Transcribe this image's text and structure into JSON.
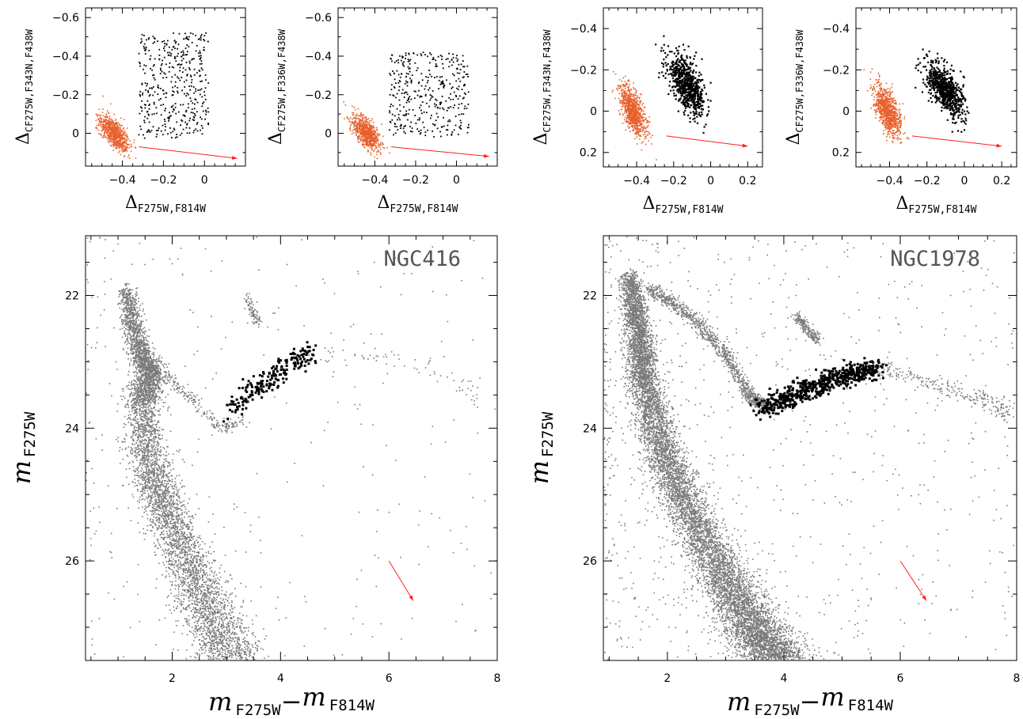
{
  "figure": {
    "colors": {
      "gray_points": "#7a7a7a",
      "black_points": "#000000",
      "orange_points": "#e8602c",
      "arrow": "#ff2020"
    }
  },
  "chart_data": [
    {
      "id": "small-1",
      "type": "scatter",
      "xlabel_main": "Δ",
      "xlabel_sub": "F275W,F814W",
      "ylabel_main": "Δ",
      "ylabel_sub": "CF275W,F343N,F438W",
      "xlim": [
        -0.58,
        0.2
      ],
      "ylim": [
        0.17,
        -0.65
      ],
      "xticks": [
        -0.4,
        -0.2,
        0
      ],
      "xticklabels": [
        "−0.4",
        "−0.2",
        "0"
      ],
      "yticks": [
        -0.6,
        -0.4,
        -0.2,
        0
      ],
      "yticklabels": [
        "−0.6",
        "−0.4",
        "−0.2",
        "0"
      ],
      "series": [
        {
          "color": "orange",
          "center": [
            -0.44,
            0.0
          ],
          "spread": [
            0.035,
            0.045
          ],
          "count": 700
        },
        {
          "color": "black",
          "x_range": [
            -0.32,
            0.02
          ],
          "y_range": [
            -0.52,
            0.03
          ],
          "count": 420
        }
      ],
      "arrow": {
        "from": [
          -0.32,
          0.07
        ],
        "to": [
          0.16,
          0.13
        ]
      }
    },
    {
      "id": "small-2",
      "type": "scatter",
      "xlabel_main": "Δ",
      "xlabel_sub": "F275W,F814W",
      "ylabel_main": "Δ",
      "ylabel_sub": "CF275W,F336W,F438W",
      "xlim": [
        -0.58,
        0.2
      ],
      "ylim": [
        0.17,
        -0.65
      ],
      "xticks": [
        -0.4,
        -0.2,
        0
      ],
      "xticklabels": [
        "−0.4",
        "−0.2",
        "0"
      ],
      "yticks": [
        -0.6,
        -0.4,
        -0.2,
        0
      ],
      "yticklabels": [
        "−0.6",
        "−0.4",
        "−0.2",
        "0"
      ],
      "series": [
        {
          "color": "orange",
          "center": [
            -0.44,
            0.0
          ],
          "spread": [
            0.035,
            0.045
          ],
          "count": 700
        },
        {
          "color": "black",
          "x_range": [
            -0.33,
            0.06
          ],
          "y_range": [
            -0.42,
            0.02
          ],
          "count": 380
        }
      ],
      "arrow": {
        "from": [
          -0.32,
          0.07
        ],
        "to": [
          0.16,
          0.12
        ]
      }
    },
    {
      "id": "small-3",
      "type": "scatter",
      "xlabel_main": "Δ",
      "xlabel_sub": "F275W,F814W",
      "ylabel_main": "Δ",
      "ylabel_sub": "CF275W,F343N,F438W",
      "xlim": [
        -0.58,
        0.28
      ],
      "ylim": [
        0.27,
        -0.5
      ],
      "xticks": [
        -0.4,
        -0.2,
        0,
        0.2
      ],
      "xticklabels": [
        "−0.4",
        "−0.2",
        "0",
        "0.2"
      ],
      "yticks": [
        -0.4,
        -0.2,
        0,
        0.2
      ],
      "yticklabels": [
        "−0.4",
        "−0.2",
        "0",
        "0.2"
      ],
      "series": [
        {
          "color": "orange",
          "center": [
            -0.42,
            0.0
          ],
          "spread": [
            0.035,
            0.06
          ],
          "count": 900
        },
        {
          "color": "black",
          "center": [
            -0.13,
            -0.13
          ],
          "spread": [
            0.05,
            0.07
          ],
          "count": 700
        }
      ],
      "arrow": {
        "from": [
          -0.24,
          0.12
        ],
        "to": [
          0.2,
          0.17
        ]
      }
    },
    {
      "id": "small-4",
      "type": "scatter",
      "xlabel_main": "Δ",
      "xlabel_sub": "F275W,F814W",
      "ylabel_main": "Δ",
      "ylabel_sub": "CF275W,F336W,F438W",
      "xlim": [
        -0.58,
        0.28
      ],
      "ylim": [
        0.27,
        -0.5
      ],
      "xticks": [
        -0.4,
        -0.2,
        0,
        0.2
      ],
      "xticklabels": [
        "−0.4",
        "−0.2",
        "0",
        "0.2"
      ],
      "yticks": [
        -0.4,
        -0.2,
        0,
        0.2
      ],
      "yticklabels": [
        "−0.4",
        "−0.2",
        "0",
        "0.2"
      ],
      "series": [
        {
          "color": "orange",
          "center": [
            -0.41,
            0.0
          ],
          "spread": [
            0.035,
            0.06
          ],
          "count": 900
        },
        {
          "color": "black",
          "center": [
            -0.1,
            -0.1
          ],
          "spread": [
            0.05,
            0.065
          ],
          "count": 700
        }
      ],
      "arrow": {
        "from": [
          -0.28,
          0.12
        ],
        "to": [
          0.2,
          0.17
        ]
      }
    },
    {
      "id": "cmd-ngc416",
      "type": "scatter",
      "label": "NGC416",
      "xlabel": "m F275W−m F814W",
      "ylabel": "m F275W",
      "xlim": [
        0.4,
        8.0
      ],
      "ylim": [
        27.5,
        21.1
      ],
      "xticks": [
        2,
        4,
        6,
        8
      ],
      "xticklabels": [
        "2",
        "4",
        "6",
        "8"
      ],
      "yticks": [
        22,
        24,
        26
      ],
      "yticklabels": [
        "22",
        "24",
        "26"
      ],
      "main_sequence": [
        [
          1.15,
          21.9
        ],
        [
          1.35,
          22.7
        ],
        [
          1.6,
          23.15
        ],
        [
          1.45,
          23.6
        ],
        [
          1.55,
          24.5
        ],
        [
          1.85,
          25.2
        ],
        [
          2.3,
          26.0
        ],
        [
          2.7,
          26.8
        ],
        [
          3.1,
          27.5
        ]
      ],
      "subgiant_branch": [
        [
          1.5,
          23.1
        ],
        [
          1.9,
          23.2
        ],
        [
          2.4,
          23.6
        ],
        [
          2.9,
          24.0
        ],
        [
          3.3,
          23.9
        ]
      ],
      "red_giant_branch_black": [
        [
          3.05,
          23.75
        ],
        [
          3.4,
          23.5
        ],
        [
          3.8,
          23.25
        ],
        [
          4.2,
          23.0
        ],
        [
          4.6,
          22.85
        ]
      ],
      "red_giant_extension": [
        [
          4.6,
          22.9
        ],
        [
          5.5,
          22.9
        ],
        [
          6.4,
          23.0
        ],
        [
          7.3,
          23.3
        ],
        [
          7.6,
          23.6
        ]
      ],
      "red_clump": [
        [
          3.35,
          22.0
        ],
        [
          3.6,
          22.45
        ]
      ],
      "arrow": {
        "from": [
          6.0,
          26.0
        ],
        "to": [
          6.45,
          26.6
        ]
      }
    },
    {
      "id": "cmd-ngc1978",
      "type": "scatter",
      "label": "NGC1978",
      "xlabel": "m F275W−m F814W",
      "ylabel": "m F275W",
      "xlim": [
        0.9,
        8.0
      ],
      "ylim": [
        27.5,
        21.1
      ],
      "xticks": [
        2,
        4,
        6,
        8
      ],
      "xticklabels": [
        "2",
        "4",
        "6",
        "8"
      ],
      "yticks": [
        22,
        24,
        26
      ],
      "yticklabels": [
        "22",
        "24",
        "26"
      ],
      "main_sequence": [
        [
          1.35,
          21.7
        ],
        [
          1.5,
          22.5
        ],
        [
          1.6,
          23.3
        ],
        [
          1.9,
          24.3
        ],
        [
          2.4,
          25.3
        ],
        [
          3.0,
          26.3
        ],
        [
          3.5,
          27.0
        ],
        [
          3.9,
          27.5
        ]
      ],
      "subgiant_branch": [
        [
          1.7,
          21.9
        ],
        [
          2.4,
          22.3
        ],
        [
          3.0,
          22.9
        ],
        [
          3.4,
          23.5
        ],
        [
          3.7,
          23.7
        ]
      ],
      "red_giant_branch_black": [
        [
          3.6,
          23.7
        ],
        [
          4.1,
          23.55
        ],
        [
          4.6,
          23.35
        ],
        [
          5.1,
          23.2
        ],
        [
          5.6,
          23.1
        ]
      ],
      "red_giant_extension": [
        [
          5.6,
          23.1
        ],
        [
          6.3,
          23.25
        ],
        [
          7.0,
          23.45
        ],
        [
          7.6,
          23.6
        ],
        [
          7.9,
          23.8
        ]
      ],
      "red_clump": [
        [
          4.2,
          22.3
        ],
        [
          4.6,
          22.7
        ]
      ],
      "arrow": {
        "from": [
          6.0,
          26.0
        ],
        "to": [
          6.45,
          26.6
        ]
      }
    }
  ]
}
